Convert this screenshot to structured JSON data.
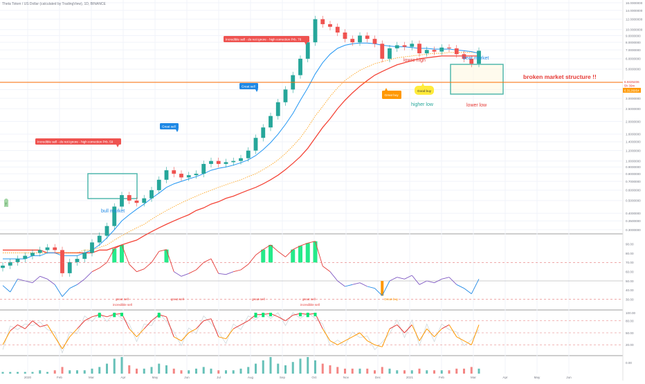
{
  "header": {
    "symbol_title": "Theta Token / US Dollar (calculated by TradingView), 1D, BINANCE"
  },
  "price_panel": {
    "current_price_label": "6.9325406",
    "countdown_label": "5h 39m",
    "ma_price_label": "6.3126954",
    "axis_ticks": [
      "16.0000000",
      "14.0000000",
      "12.0000000",
      "10.0000000",
      "9.0000000",
      "8.0000000",
      "7.0000000",
      "6.0000000",
      "5.0000000",
      "4.0000000",
      "3.5000000",
      "3.0000000",
      "2.5000000",
      "2.0000000",
      "1.6000000",
      "1.4000000",
      "1.2000000",
      "1.0000000",
      "0.9000000",
      "0.8000000",
      "0.7000000",
      "0.6000000",
      "0.5000000",
      "0.4000000",
      "0.3500000",
      "0.3000000"
    ],
    "annotations": {
      "sell_1": "Incredible sell - do not ignore - high correction Prb.  59",
      "sell_2": "Incredible sell - do not ignore - high correction Prb.  76",
      "great_sell_1": "Great sell",
      "great_sell_2": "Great sell",
      "great_buy": "Great buy",
      "good_buy": "Good buy",
      "bull_market": "bull market",
      "bear_market": "bear market",
      "lower_high": "lowre high",
      "higher_low": "higher low",
      "lower_low": "lower low",
      "broken_structure": "broken market structure !!",
      "flag_number": "7"
    }
  },
  "rsi_panel": {
    "axis_ticks": [
      "90.00",
      "80.00",
      "70.00",
      "60.00",
      "50.00",
      "40.00",
      "30.00"
    ],
    "signal_labels": {
      "g1a": "great sell",
      "g1b": "incredible sell",
      "g2": "great sell",
      "g3": "great sell",
      "g4a": "great sell",
      "g4b": "incredible sell",
      "buy": "Great buy"
    }
  },
  "stoch_panel": {
    "axis_ticks": [
      "100.00",
      "80.00",
      "50.00",
      "20.00"
    ]
  },
  "volume_panel": {
    "axis_ticks": [
      "0.00"
    ]
  },
  "time_axis": {
    "labels": [
      "2020",
      "Feb",
      "Mar",
      "Apr",
      "May",
      "Jun",
      "Jul",
      "Aug",
      "Sep",
      "Oct",
      "Nov",
      "Dec",
      "2021",
      "Feb",
      "Mar",
      "Apr",
      "May",
      "Jun"
    ]
  },
  "colors": {
    "candle_up": "#26a69a",
    "candle_down": "#ef5350",
    "ma_fast": "#2196f3",
    "ma_mid": "#ff9800",
    "ma_slow": "#f44336",
    "hline": "#ff6d00",
    "box": "#26a69a",
    "annotation_red": "#e53935",
    "annotation_blue": "#1e88e5",
    "annotation_teal": "#26a69a",
    "annotation_orange": "#ff9800",
    "annotation_yellow": "#ffeb3b"
  },
  "chart_data": {
    "type": "candlestick",
    "title": "Theta Token / US Dollar (calculated by TradingView), 1D, BINANCE",
    "scale": "log",
    "ylim": [
      0.3,
      16
    ],
    "x_unit": "weekly samples starting 2020 (Jan)",
    "close": [
      0.16,
      0.17,
      0.18,
      0.19,
      0.2,
      0.21,
      0.22,
      0.21,
      0.14,
      0.17,
      0.18,
      0.2,
      0.24,
      0.27,
      0.32,
      0.45,
      0.55,
      0.5,
      0.48,
      0.52,
      0.6,
      0.72,
      0.85,
      0.8,
      0.75,
      0.78,
      0.8,
      0.95,
      1.0,
      0.95,
      0.98,
      1.0,
      1.05,
      1.2,
      1.5,
      1.8,
      2.2,
      2.8,
      3.5,
      4.5,
      6.0,
      8.0,
      12.0,
      11.0,
      10.5,
      9.5,
      8.5,
      8.0,
      9.0,
      8.5,
      7.8,
      6.0,
      7.2,
      7.6,
      7.4,
      7.8,
      6.6,
      7.0,
      6.8,
      7.3,
      7.2,
      6.5,
      6.0,
      5.5,
      6.9
    ],
    "ma_fast": [
      0.18,
      0.18,
      0.18,
      0.18,
      0.19,
      0.19,
      0.2,
      0.2,
      0.19,
      0.19,
      0.19,
      0.2,
      0.21,
      0.23,
      0.26,
      0.3,
      0.35,
      0.39,
      0.43,
      0.47,
      0.52,
      0.57,
      0.63,
      0.67,
      0.7,
      0.73,
      0.76,
      0.8,
      0.85,
      0.88,
      0.9,
      0.93,
      0.97,
      1.02,
      1.1,
      1.22,
      1.38,
      1.6,
      1.9,
      2.3,
      2.9,
      3.6,
      4.6,
      5.6,
      6.5,
      7.2,
      7.6,
      7.8,
      7.9,
      7.9,
      7.8,
      7.6,
      7.5,
      7.4,
      7.4,
      7.3,
      7.2,
      7.2,
      7.1,
      7.1,
      7.1,
      7.0,
      6.9,
      6.8,
      6.6
    ],
    "ma_mid": [
      0.2,
      0.2,
      0.2,
      0.2,
      0.2,
      0.2,
      0.2,
      0.2,
      0.2,
      0.2,
      0.2,
      0.21,
      0.21,
      0.22,
      0.23,
      0.25,
      0.27,
      0.29,
      0.31,
      0.33,
      0.36,
      0.39,
      0.42,
      0.45,
      0.48,
      0.51,
      0.54,
      0.57,
      0.6,
      0.63,
      0.66,
      0.69,
      0.72,
      0.76,
      0.8,
      0.86,
      0.93,
      1.02,
      1.14,
      1.3,
      1.5,
      1.8,
      2.2,
      2.6,
      3.1,
      3.6,
      4.1,
      4.5,
      4.9,
      5.2,
      5.5,
      5.7,
      5.9,
      6.1,
      6.2,
      6.3,
      6.4,
      6.5,
      6.6,
      6.6,
      6.7,
      6.7,
      6.7,
      6.7,
      6.7
    ],
    "ma_slow": [
      0.21,
      0.21,
      0.21,
      0.21,
      0.21,
      0.21,
      0.2,
      0.2,
      0.2,
      0.2,
      0.2,
      0.2,
      0.2,
      0.21,
      0.21,
      0.22,
      0.23,
      0.24,
      0.25,
      0.27,
      0.29,
      0.31,
      0.33,
      0.35,
      0.37,
      0.39,
      0.42,
      0.44,
      0.47,
      0.49,
      0.52,
      0.54,
      0.57,
      0.6,
      0.63,
      0.67,
      0.72,
      0.78,
      0.86,
      0.96,
      1.08,
      1.25,
      1.5,
      1.8,
      2.1,
      2.5,
      2.9,
      3.3,
      3.7,
      4.1,
      4.5,
      4.8,
      5.1,
      5.4,
      5.6,
      5.8,
      6.0,
      6.1,
      6.2,
      6.3,
      6.3,
      6.3,
      6.3,
      6.3,
      6.3
    ],
    "hline": 6.3126954,
    "rsi": [
      45,
      38,
      52,
      50,
      48,
      55,
      52,
      46,
      33,
      42,
      46,
      52,
      60,
      64,
      70,
      85,
      89,
      68,
      60,
      63,
      70,
      82,
      84,
      60,
      55,
      58,
      62,
      70,
      74,
      58,
      57,
      60,
      62,
      68,
      78,
      84,
      89,
      82,
      76,
      84,
      88,
      91,
      93,
      66,
      60,
      50,
      44,
      46,
      48,
      44,
      42,
      34,
      50,
      54,
      52,
      56,
      46,
      50,
      48,
      52,
      54,
      46,
      42,
      36,
      52
    ],
    "rsi_levels": [
      70,
      50,
      30
    ],
    "stoch_k": [
      20,
      55,
      70,
      60,
      80,
      65,
      70,
      40,
      10,
      40,
      60,
      80,
      90,
      95,
      90,
      96,
      98,
      60,
      40,
      60,
      80,
      95,
      90,
      40,
      30,
      50,
      60,
      80,
      85,
      40,
      35,
      60,
      70,
      80,
      95,
      96,
      98,
      90,
      80,
      94,
      98,
      96,
      98,
      60,
      30,
      20,
      30,
      40,
      50,
      30,
      20,
      15,
      60,
      70,
      50,
      70,
      30,
      60,
      40,
      60,
      70,
      40,
      30,
      20,
      70
    ],
    "volume": [
      1,
      1,
      1,
      1,
      1,
      2,
      1,
      2,
      4,
      2,
      2,
      2,
      3,
      4,
      6,
      9,
      10,
      5,
      3,
      3,
      4,
      6,
      5,
      3,
      2,
      2,
      3,
      4,
      3,
      2,
      2,
      2,
      3,
      4,
      6,
      8,
      10,
      6,
      5,
      7,
      9,
      10,
      8,
      6,
      5,
      4,
      3,
      3,
      3,
      3,
      2,
      4,
      3,
      2,
      2,
      2,
      3,
      2,
      2,
      2,
      2,
      3,
      3,
      4,
      3
    ]
  }
}
